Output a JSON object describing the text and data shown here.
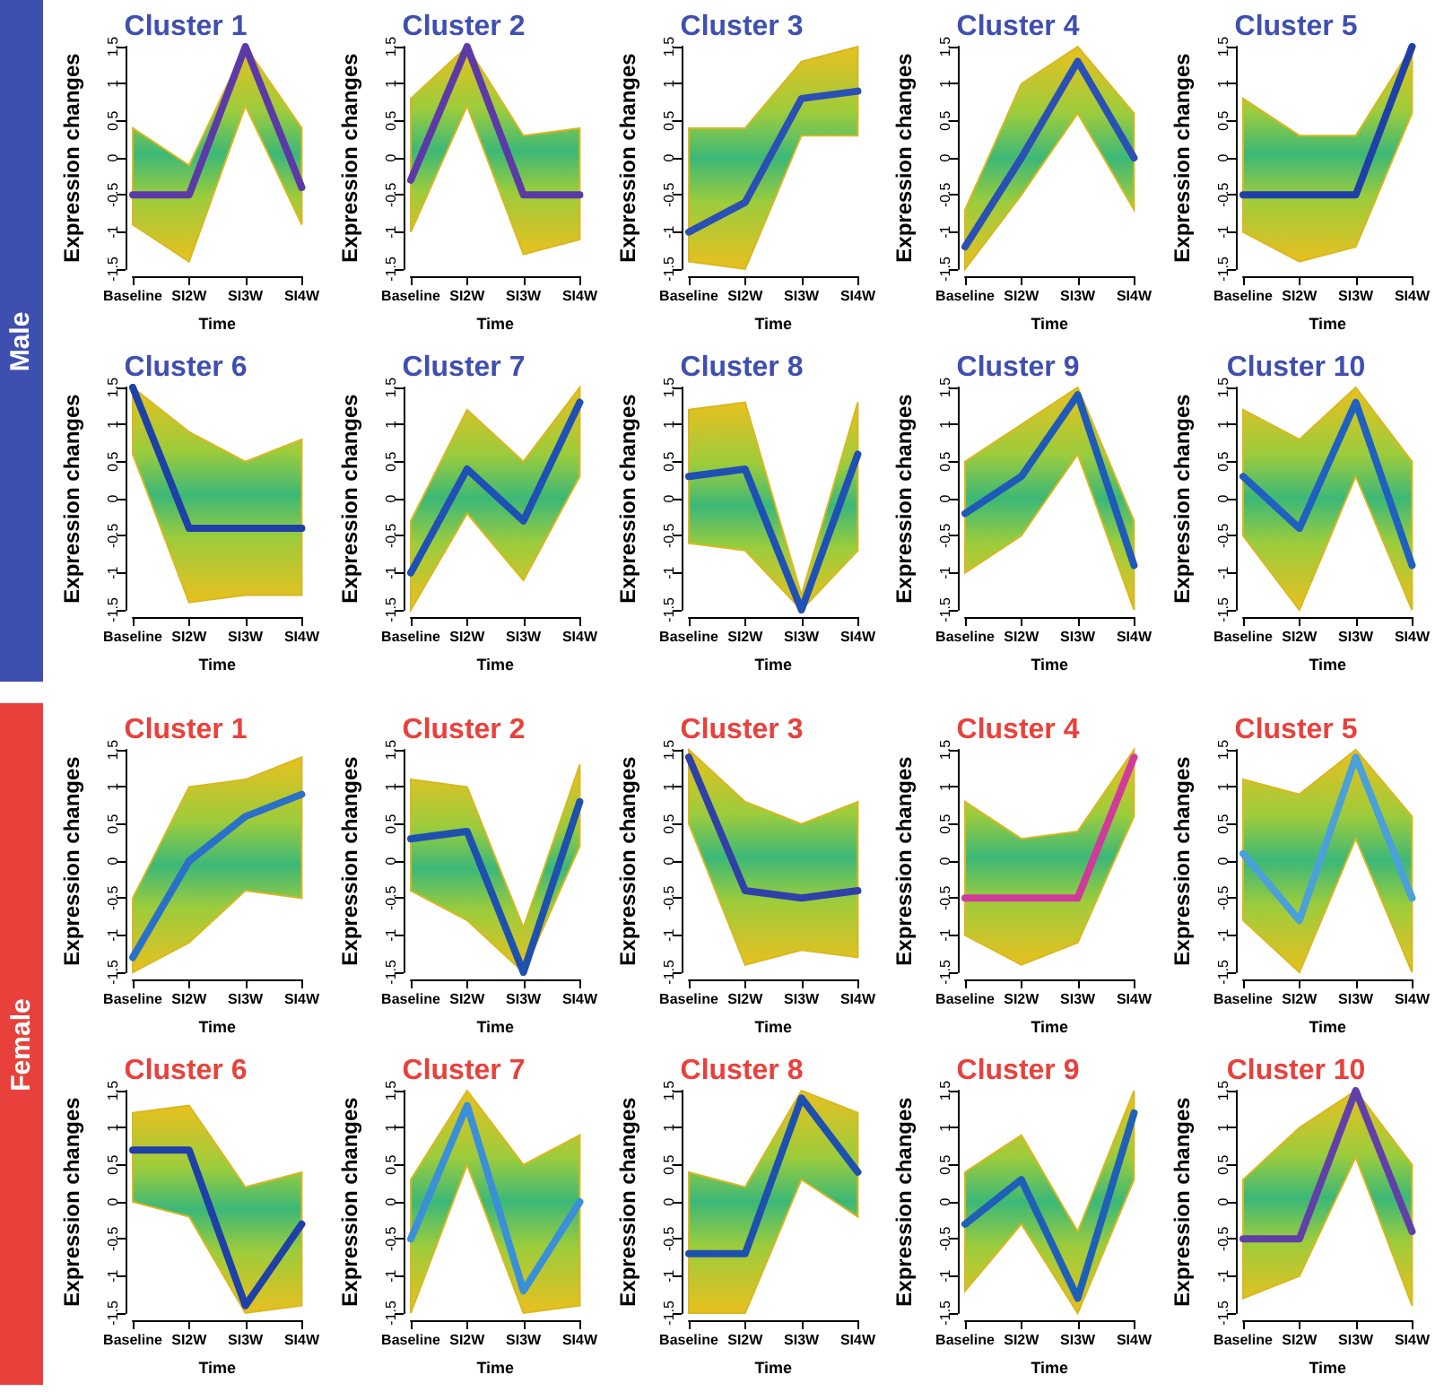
{
  "chart_data": [
    {
      "type": "line",
      "title": "Cluster 1",
      "xlabel": "Time",
      "ylabel": "Expression changes",
      "annotations": [
        "Male"
      ],
      "categories": [
        "Baseline",
        "SI2W",
        "SI3W",
        "SI4W"
      ],
      "ylim": [
        -1.5,
        1.5
      ],
      "yticks": [
        -1.5,
        -1,
        -0.5,
        0,
        0.5,
        1,
        1.5
      ],
      "grid": false,
      "series": [
        {
          "color": "#5b3aa8",
          "values": [
            -0.5,
            -0.5,
            1.5,
            -0.4
          ],
          "lower": [
            -0.9,
            -1.4,
            0.7,
            -0.9
          ],
          "upper": [
            0.4,
            -0.1,
            1.5,
            0.4
          ]
        }
      ]
    },
    {
      "type": "line",
      "title": "Cluster 2",
      "xlabel": "Time",
      "ylabel": "Expression changes",
      "categories": [
        "Baseline",
        "SI2W",
        "SI3W",
        "SI4W"
      ],
      "ylim": [
        -1.5,
        1.5
      ],
      "yticks": [
        -1.5,
        -1,
        -0.5,
        0,
        0.5,
        1,
        1.5
      ],
      "grid": false,
      "series": [
        {
          "color": "#5b3aa8",
          "values": [
            -0.3,
            1.5,
            -0.5,
            -0.5
          ],
          "lower": [
            -1.0,
            0.7,
            -1.3,
            -1.1
          ],
          "upper": [
            0.8,
            1.5,
            0.3,
            0.4
          ]
        }
      ]
    },
    {
      "type": "line",
      "title": "Cluster 3",
      "xlabel": "Time",
      "ylabel": "Expression changes",
      "categories": [
        "Baseline",
        "SI2W",
        "SI3W",
        "SI4W"
      ],
      "ylim": [
        -1.5,
        1.5
      ],
      "yticks": [
        -1.5,
        -1,
        -0.5,
        0,
        0.5,
        1,
        1.5
      ],
      "grid": false,
      "series": [
        {
          "color": "#2a4fb5",
          "values": [
            -1.0,
            -0.6,
            0.8,
            0.9
          ],
          "lower": [
            -1.4,
            -1.5,
            0.3,
            0.3
          ],
          "upper": [
            0.4,
            0.4,
            1.3,
            1.5
          ]
        }
      ]
    },
    {
      "type": "line",
      "title": "Cluster 4",
      "xlabel": "Time",
      "ylabel": "Expression changes",
      "categories": [
        "Baseline",
        "SI2W",
        "SI3W",
        "SI4W"
      ],
      "ylim": [
        -1.5,
        1.5
      ],
      "yticks": [
        -1.5,
        -1,
        -0.5,
        0,
        0.5,
        1,
        1.5
      ],
      "grid": false,
      "series": [
        {
          "color": "#2a4fb5",
          "values": [
            -1.2,
            0.0,
            1.3,
            0.0
          ],
          "lower": [
            -1.5,
            -0.5,
            0.6,
            -0.7
          ],
          "upper": [
            -0.7,
            1.0,
            1.5,
            0.6
          ]
        }
      ]
    },
    {
      "type": "line",
      "title": "Cluster 5",
      "xlabel": "Time",
      "ylabel": "Expression changes",
      "categories": [
        "Baseline",
        "SI2W",
        "SI3W",
        "SI4W"
      ],
      "ylim": [
        -1.5,
        1.5
      ],
      "yticks": [
        -1.5,
        -1,
        -0.5,
        0,
        0.5,
        1,
        1.5
      ],
      "grid": false,
      "series": [
        {
          "color": "#1e40a8",
          "values": [
            -0.5,
            -0.5,
            -0.5,
            1.5
          ],
          "lower": [
            -1.0,
            -1.4,
            -1.2,
            0.6
          ],
          "upper": [
            0.8,
            0.3,
            0.3,
            1.5
          ]
        }
      ]
    },
    {
      "type": "line",
      "title": "Cluster 6",
      "xlabel": "Time",
      "ylabel": "Expression changes",
      "categories": [
        "Baseline",
        "SI2W",
        "SI3W",
        "SI4W"
      ],
      "ylim": [
        -1.5,
        1.5
      ],
      "yticks": [
        -1.5,
        -1,
        -0.5,
        0,
        0.5,
        1,
        1.5
      ],
      "grid": false,
      "series": [
        {
          "color": "#1e40a8",
          "values": [
            1.5,
            -0.4,
            -0.4,
            -0.4
          ],
          "lower": [
            0.6,
            -1.4,
            -1.3,
            -1.3
          ],
          "upper": [
            1.5,
            0.9,
            0.5,
            0.8
          ]
        }
      ]
    },
    {
      "type": "line",
      "title": "Cluster 7",
      "xlabel": "Time",
      "ylabel": "Expression changes",
      "categories": [
        "Baseline",
        "SI2W",
        "SI3W",
        "SI4W"
      ],
      "ylim": [
        -1.5,
        1.5
      ],
      "yticks": [
        -1.5,
        -1,
        -0.5,
        0,
        0.5,
        1,
        1.5
      ],
      "grid": false,
      "series": [
        {
          "color": "#1e50b5",
          "values": [
            -1.0,
            0.4,
            -0.3,
            1.3
          ],
          "lower": [
            -1.5,
            -0.2,
            -1.1,
            0.3
          ],
          "upper": [
            -0.3,
            1.2,
            0.5,
            1.5
          ]
        }
      ]
    },
    {
      "type": "line",
      "title": "Cluster 8",
      "xlabel": "Time",
      "ylabel": "Expression changes",
      "categories": [
        "Baseline",
        "SI2W",
        "SI3W",
        "SI4W"
      ],
      "ylim": [
        -1.5,
        1.5
      ],
      "yticks": [
        -1.5,
        -1,
        -0.5,
        0,
        0.5,
        1,
        1.5
      ],
      "grid": false,
      "series": [
        {
          "color": "#1e50b5",
          "values": [
            0.3,
            0.4,
            -1.5,
            0.6
          ],
          "lower": [
            -0.6,
            -0.7,
            -1.5,
            -0.7
          ],
          "upper": [
            1.2,
            1.3,
            -1.3,
            1.3
          ]
        }
      ]
    },
    {
      "type": "line",
      "title": "Cluster 9",
      "xlabel": "Time",
      "ylabel": "Expression changes",
      "categories": [
        "Baseline",
        "SI2W",
        "SI3W",
        "SI4W"
      ],
      "ylim": [
        -1.5,
        1.5
      ],
      "yticks": [
        -1.5,
        -1,
        -0.5,
        0,
        0.5,
        1,
        1.5
      ],
      "grid": false,
      "series": [
        {
          "color": "#1e5ab8",
          "values": [
            -0.2,
            0.3,
            1.4,
            -0.9
          ],
          "lower": [
            -1.0,
            -0.5,
            0.6,
            -1.5
          ],
          "upper": [
            0.5,
            1.0,
            1.5,
            -0.3
          ]
        }
      ]
    },
    {
      "type": "line",
      "title": "Cluster 10",
      "xlabel": "Time",
      "ylabel": "Expression changes",
      "categories": [
        "Baseline",
        "SI2W",
        "SI3W",
        "SI4W"
      ],
      "ylim": [
        -1.5,
        1.5
      ],
      "yticks": [
        -1.5,
        -1,
        -0.5,
        0,
        0.5,
        1,
        1.5
      ],
      "grid": false,
      "series": [
        {
          "color": "#2060c0",
          "values": [
            0.3,
            -0.4,
            1.3,
            -0.9
          ],
          "lower": [
            -0.5,
            -1.5,
            0.3,
            -1.5
          ],
          "upper": [
            1.2,
            0.8,
            1.5,
            0.5
          ]
        }
      ]
    },
    {
      "type": "line",
      "title": "Cluster 1",
      "xlabel": "Time",
      "ylabel": "Expression changes",
      "annotations": [
        "Female"
      ],
      "categories": [
        "Baseline",
        "SI2W",
        "SI3W",
        "SI4W"
      ],
      "ylim": [
        -1.5,
        1.5
      ],
      "yticks": [
        -1.5,
        -1,
        -0.5,
        0,
        0.5,
        1,
        1.5
      ],
      "grid": false,
      "series": [
        {
          "color": "#2a70c8",
          "values": [
            -1.3,
            0.0,
            0.6,
            0.9
          ],
          "lower": [
            -1.5,
            -1.1,
            -0.4,
            -0.5
          ],
          "upper": [
            -0.5,
            1.0,
            1.1,
            1.4
          ]
        }
      ]
    },
    {
      "type": "line",
      "title": "Cluster 2",
      "xlabel": "Time",
      "ylabel": "Expression changes",
      "categories": [
        "Baseline",
        "SI2W",
        "SI3W",
        "SI4W"
      ],
      "ylim": [
        -1.5,
        1.5
      ],
      "yticks": [
        -1.5,
        -1,
        -0.5,
        0,
        0.5,
        1,
        1.5
      ],
      "grid": false,
      "series": [
        {
          "color": "#1e50b0",
          "values": [
            0.3,
            0.4,
            -1.5,
            0.8
          ],
          "lower": [
            -0.4,
            -0.8,
            -1.5,
            0.2
          ],
          "upper": [
            1.1,
            1.0,
            -0.9,
            1.3
          ]
        }
      ]
    },
    {
      "type": "line",
      "title": "Cluster 3",
      "xlabel": "Time",
      "ylabel": "Expression changes",
      "categories": [
        "Baseline",
        "SI2W",
        "SI3W",
        "SI4W"
      ],
      "ylim": [
        -1.5,
        1.5
      ],
      "yticks": [
        -1.5,
        -1,
        -0.5,
        0,
        0.5,
        1,
        1.5
      ],
      "grid": false,
      "series": [
        {
          "color": "#3040a8",
          "values": [
            1.4,
            -0.4,
            -0.5,
            -0.4
          ],
          "lower": [
            0.5,
            -1.4,
            -1.2,
            -1.3
          ],
          "upper": [
            1.5,
            0.8,
            0.5,
            0.8
          ]
        }
      ]
    },
    {
      "type": "line",
      "title": "Cluster 4",
      "xlabel": "Time",
      "ylabel": "Expression changes",
      "categories": [
        "Baseline",
        "SI2W",
        "SI3W",
        "SI4W"
      ],
      "ylim": [
        -1.5,
        1.5
      ],
      "yticks": [
        -1.5,
        -1,
        -0.5,
        0,
        0.5,
        1,
        1.5
      ],
      "grid": false,
      "series": [
        {
          "color": "#d03a9a",
          "values": [
            -0.5,
            -0.5,
            -0.5,
            1.4
          ],
          "lower": [
            -1.0,
            -1.4,
            -1.1,
            0.6
          ],
          "upper": [
            0.8,
            0.3,
            0.4,
            1.5
          ]
        }
      ]
    },
    {
      "type": "line",
      "title": "Cluster 5",
      "xlabel": "Time",
      "ylabel": "Expression changes",
      "categories": [
        "Baseline",
        "SI2W",
        "SI3W",
        "SI4W"
      ],
      "ylim": [
        -1.5,
        1.5
      ],
      "yticks": [
        -1.5,
        -1,
        -0.5,
        0,
        0.5,
        1,
        1.5
      ],
      "grid": false,
      "series": [
        {
          "color": "#4aa0d8",
          "values": [
            0.1,
            -0.8,
            1.4,
            -0.5
          ],
          "lower": [
            -0.8,
            -1.5,
            0.3,
            -1.5
          ],
          "upper": [
            1.1,
            0.9,
            1.5,
            0.6
          ]
        }
      ]
    },
    {
      "type": "line",
      "title": "Cluster 6",
      "xlabel": "Time",
      "ylabel": "Expression changes",
      "categories": [
        "Baseline",
        "SI2W",
        "SI3W",
        "SI4W"
      ],
      "ylim": [
        -1.5,
        1.5
      ],
      "yticks": [
        -1.5,
        -1,
        -0.5,
        0,
        0.5,
        1,
        1.5
      ],
      "grid": false,
      "series": [
        {
          "color": "#1e40a8",
          "values": [
            0.7,
            0.7,
            -1.4,
            -0.3
          ],
          "lower": [
            0.0,
            -0.2,
            -1.5,
            -1.4
          ],
          "upper": [
            1.2,
            1.3,
            0.2,
            0.4
          ]
        }
      ]
    },
    {
      "type": "line",
      "title": "Cluster 7",
      "xlabel": "Time",
      "ylabel": "Expression changes",
      "categories": [
        "Baseline",
        "SI2W",
        "SI3W",
        "SI4W"
      ],
      "ylim": [
        -1.5,
        1.5
      ],
      "yticks": [
        -1.5,
        -1,
        -0.5,
        0,
        0.5,
        1,
        1.5
      ],
      "grid": false,
      "series": [
        {
          "color": "#3a90d8",
          "values": [
            -0.5,
            1.3,
            -1.2,
            0.0
          ],
          "lower": [
            -1.5,
            0.5,
            -1.5,
            -1.4
          ],
          "upper": [
            0.3,
            1.5,
            0.5,
            0.9
          ]
        }
      ]
    },
    {
      "type": "line",
      "title": "Cluster 8",
      "xlabel": "Time",
      "ylabel": "Expression changes",
      "categories": [
        "Baseline",
        "SI2W",
        "SI3W",
        "SI4W"
      ],
      "ylim": [
        -1.5,
        1.5
      ],
      "yticks": [
        -1.5,
        -1,
        -0.5,
        0,
        0.5,
        1,
        1.5
      ],
      "grid": false,
      "series": [
        {
          "color": "#1e50b0",
          "values": [
            -0.7,
            -0.7,
            1.4,
            0.4
          ],
          "lower": [
            -1.5,
            -1.5,
            0.3,
            -0.2
          ],
          "upper": [
            0.4,
            0.2,
            1.5,
            1.2
          ]
        }
      ]
    },
    {
      "type": "line",
      "title": "Cluster 9",
      "xlabel": "Time",
      "ylabel": "Expression changes",
      "categories": [
        "Baseline",
        "SI2W",
        "SI3W",
        "SI4W"
      ],
      "ylim": [
        -1.5,
        1.5
      ],
      "yticks": [
        -1.5,
        -1,
        -0.5,
        0,
        0.5,
        1,
        1.5
      ],
      "grid": false,
      "series": [
        {
          "color": "#1e60b8",
          "values": [
            -0.3,
            0.3,
            -1.3,
            1.2
          ],
          "lower": [
            -1.2,
            -0.3,
            -1.5,
            0.3
          ],
          "upper": [
            0.4,
            0.9,
            -0.4,
            1.5
          ]
        }
      ]
    },
    {
      "type": "line",
      "title": "Cluster 10",
      "xlabel": "Time",
      "ylabel": "Expression changes",
      "categories": [
        "Baseline",
        "SI2W",
        "SI3W",
        "SI4W"
      ],
      "ylim": [
        -1.5,
        1.5
      ],
      "yticks": [
        -1.5,
        -1,
        -0.5,
        0,
        0.5,
        1,
        1.5
      ],
      "grid": false,
      "series": [
        {
          "color": "#6040a8",
          "values": [
            -0.5,
            -0.5,
            1.5,
            -0.4
          ],
          "lower": [
            -1.3,
            -1.0,
            0.6,
            -1.4
          ],
          "upper": [
            0.3,
            1.0,
            1.5,
            0.5
          ]
        }
      ]
    }
  ]
}
